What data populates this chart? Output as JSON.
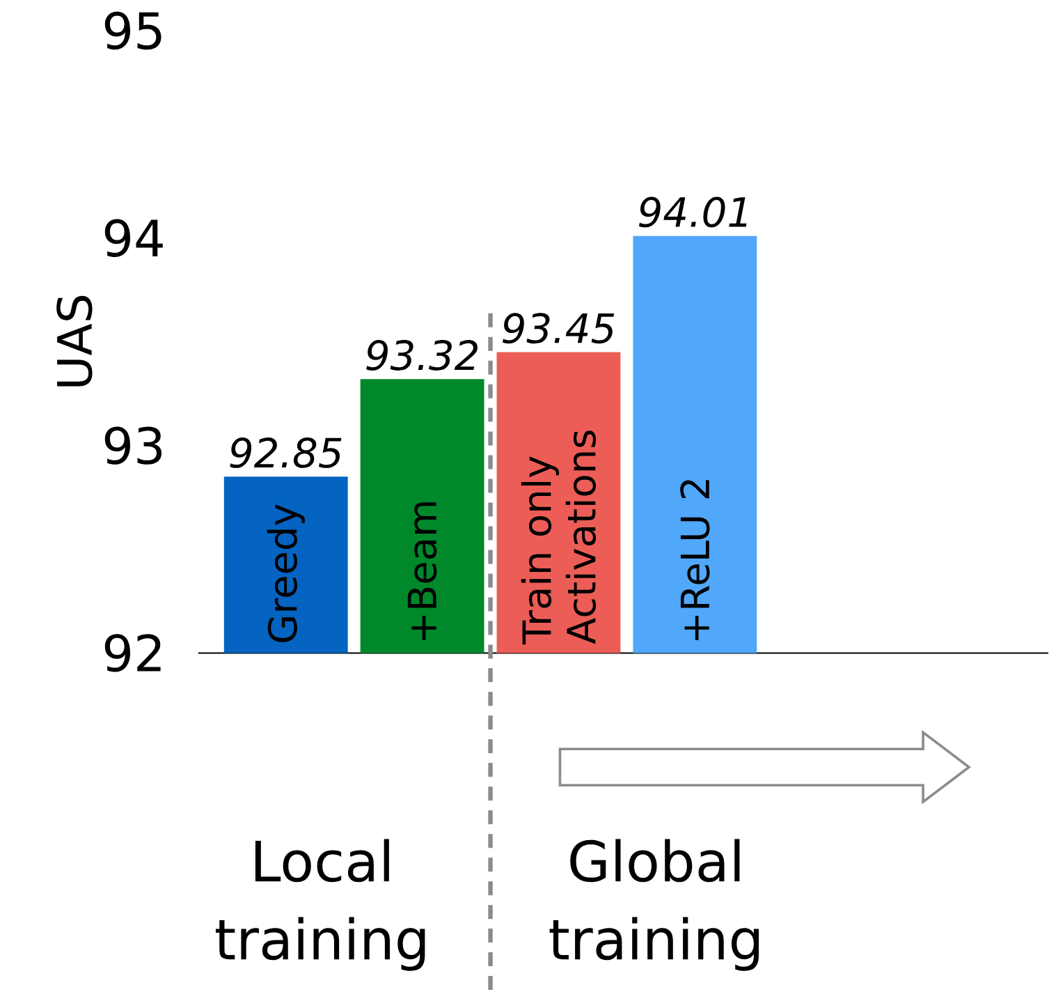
{
  "chart_data": {
    "type": "bar",
    "ylabel": "UAS",
    "categories": [
      "Greedy",
      "+Beam",
      "Train only Activations",
      "+ReLU 2"
    ],
    "values": [
      92.85,
      93.32,
      93.45,
      94.01
    ],
    "colors": [
      "#0563c1",
      "#00882b",
      "#ec5d57",
      "#51a7f9"
    ],
    "ylim": [
      92,
      95
    ],
    "yticks": [
      92,
      93,
      94,
      95
    ],
    "data_labels": true,
    "annotations": [
      "Local training",
      "Global training"
    ]
  }
}
